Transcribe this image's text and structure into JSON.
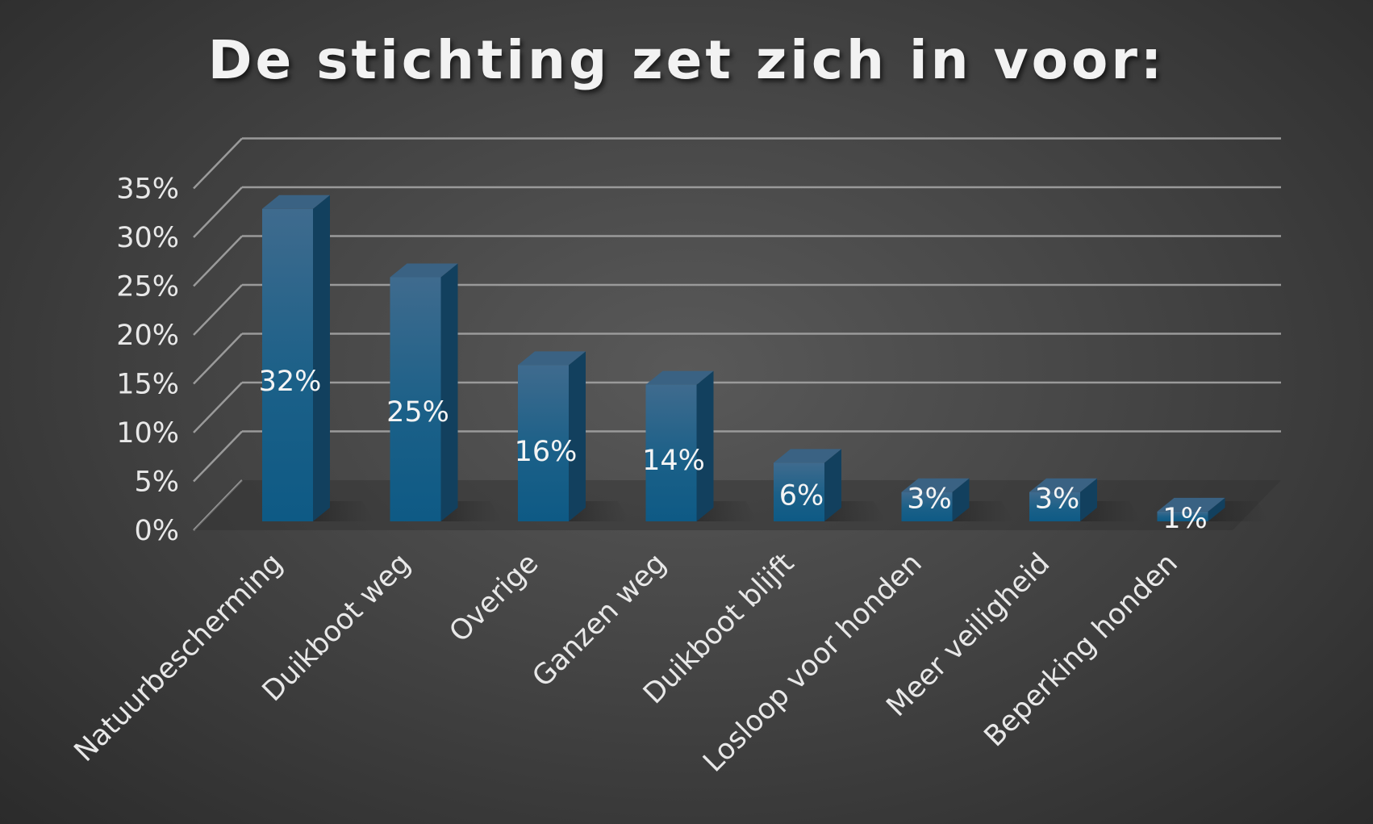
{
  "chart_data": {
    "type": "bar",
    "title": "De stichting zet zich in voor:",
    "categories": [
      "Natuurbescherming",
      "Duikboot weg",
      "Overige",
      "Ganzen weg",
      "Duikboot blijft",
      "Losloop voor honden",
      "Meer veiligheid",
      "Beperking honden"
    ],
    "values": [
      32,
      25,
      16,
      14,
      6,
      3,
      3,
      1
    ],
    "data_labels": [
      "32%",
      "25%",
      "16%",
      "14%",
      "6%",
      "3%",
      "3%",
      "1%"
    ],
    "y_ticks": [
      0,
      5,
      10,
      15,
      20,
      25,
      30,
      35
    ],
    "y_tick_labels": [
      "0%",
      "5%",
      "10%",
      "15%",
      "20%",
      "25%",
      "30%",
      "35%"
    ],
    "ylim": [
      0,
      35
    ],
    "xlabel": "",
    "ylabel": "",
    "grid": true,
    "style": "3d-column",
    "colors": {
      "bar": "#1f6690",
      "bar_top": "#3d6684",
      "bar_side": "#14405f",
      "grid": "#9a9a9a"
    }
  }
}
